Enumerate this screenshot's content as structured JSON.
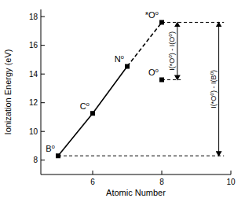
{
  "chart_data": {
    "type": "line",
    "x_label": "Atomic Number",
    "y_label": "Ionization Energy (eV)",
    "xlim": [
      4.5,
      10
    ],
    "xticks": [
      6,
      8,
      10
    ],
    "ylim": [
      7,
      18.5
    ],
    "yticks": [
      8,
      10,
      12,
      14,
      16,
      18
    ],
    "color": "#000000",
    "series": [
      {
        "type": "line",
        "line_style": "solid",
        "marker": "none",
        "x": [
          5,
          6,
          7
        ],
        "values": [
          8.3,
          11.26,
          14.53
        ]
      },
      {
        "type": "line",
        "line_style": "dashed",
        "marker": "none",
        "x": [
          7,
          8
        ],
        "values": [
          14.53,
          17.6
        ]
      },
      {
        "type": "scatter",
        "line_style": "none",
        "marker": "square",
        "x": [
          5,
          6,
          7,
          8,
          8
        ],
        "values": [
          8.3,
          11.26,
          14.53,
          17.6,
          13.6
        ],
        "labels": [
          "B⁰",
          "C⁰",
          "N⁰",
          "*O⁰",
          "O⁰"
        ]
      }
    ],
    "reference_lines": [
      {
        "y": 17.6,
        "x": [
          8,
          9.8
        ]
      },
      {
        "y": 13.6,
        "x": [
          8,
          8.55
        ]
      },
      {
        "y": 8.3,
        "x": [
          5,
          9.8
        ]
      }
    ],
    "annotations": [
      {
        "text": "I(*O⁰) - I(O⁰)",
        "x": 8.45,
        "y": [
          13.6,
          17.6
        ]
      },
      {
        "text": "I(*O⁰) - I(B⁰)",
        "x": 9.65,
        "y": [
          8.3,
          17.6
        ]
      }
    ]
  }
}
